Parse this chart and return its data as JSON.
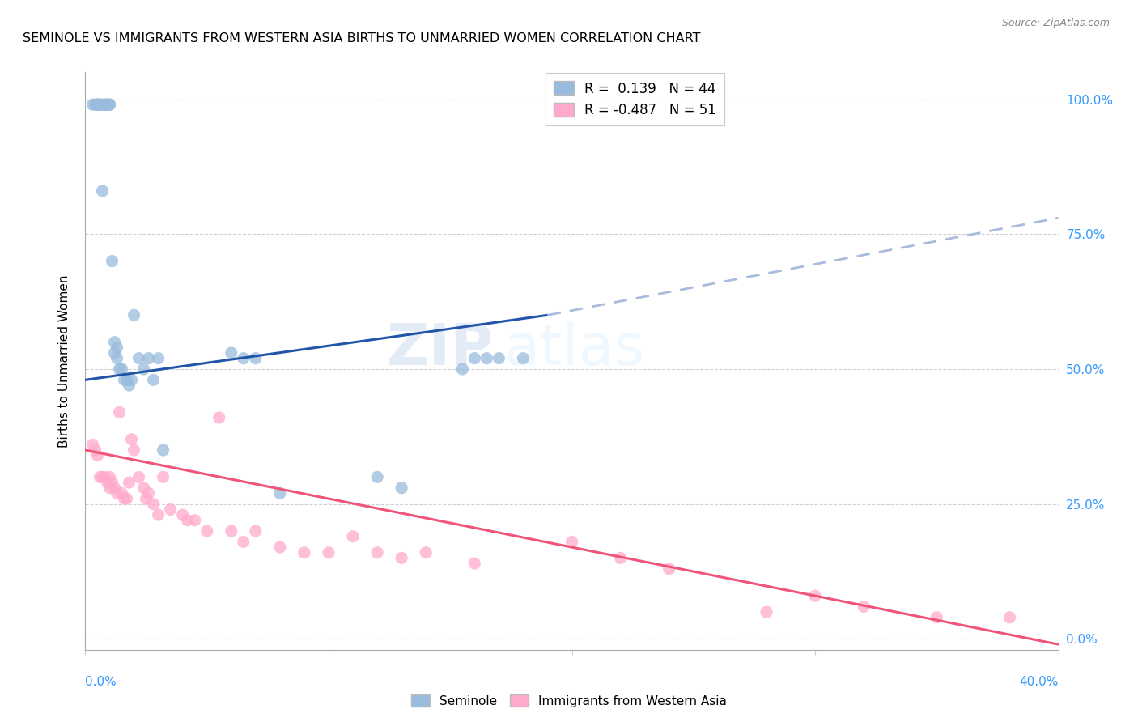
{
  "title": "SEMINOLE VS IMMIGRANTS FROM WESTERN ASIA BIRTHS TO UNMARRIED WOMEN CORRELATION CHART",
  "source": "Source: ZipAtlas.com",
  "ylabel": "Births to Unmarried Women",
  "right_yticks": [
    "100.0%",
    "75.0%",
    "50.0%",
    "25.0%",
    "0.0%"
  ],
  "right_ytick_vals": [
    1.0,
    0.75,
    0.5,
    0.25,
    0.0
  ],
  "xlim": [
    0.0,
    0.4
  ],
  "ylim": [
    -0.02,
    1.05
  ],
  "legend_blue_r": "0.139",
  "legend_blue_n": "44",
  "legend_pink_r": "-0.487",
  "legend_pink_n": "51",
  "blue_color": "#99BBDD",
  "pink_color": "#FFAACC",
  "blue_line_color": "#2255AA",
  "pink_line_color": "#EE5577",
  "dashed_line_color": "#AABBDD",
  "watermark_zip": "ZIP",
  "watermark_atlas": "atlas",
  "blue_scatter_x": [
    0.003,
    0.004,
    0.005,
    0.005,
    0.005,
    0.006,
    0.006,
    0.007,
    0.007,
    0.008,
    0.008,
    0.009,
    0.009,
    0.01,
    0.01,
    0.011,
    0.012,
    0.012,
    0.013,
    0.013,
    0.014,
    0.015,
    0.016,
    0.017,
    0.018,
    0.019,
    0.02,
    0.022,
    0.024,
    0.026,
    0.028,
    0.03,
    0.032,
    0.06,
    0.065,
    0.07,
    0.08,
    0.12,
    0.13,
    0.155,
    0.16,
    0.165,
    0.17,
    0.18
  ],
  "blue_scatter_y": [
    0.99,
    0.99,
    0.99,
    0.99,
    0.99,
    0.99,
    0.99,
    0.99,
    0.83,
    0.99,
    0.99,
    0.99,
    0.99,
    0.99,
    0.99,
    0.7,
    0.55,
    0.53,
    0.52,
    0.54,
    0.5,
    0.5,
    0.48,
    0.48,
    0.47,
    0.48,
    0.6,
    0.52,
    0.5,
    0.52,
    0.48,
    0.52,
    0.35,
    0.53,
    0.52,
    0.52,
    0.27,
    0.3,
    0.28,
    0.5,
    0.52,
    0.52,
    0.52,
    0.52
  ],
  "pink_scatter_x": [
    0.003,
    0.004,
    0.005,
    0.006,
    0.007,
    0.008,
    0.009,
    0.01,
    0.01,
    0.011,
    0.012,
    0.013,
    0.014,
    0.015,
    0.016,
    0.017,
    0.018,
    0.019,
    0.02,
    0.022,
    0.024,
    0.025,
    0.026,
    0.028,
    0.03,
    0.032,
    0.035,
    0.04,
    0.042,
    0.045,
    0.05,
    0.055,
    0.06,
    0.065,
    0.07,
    0.08,
    0.09,
    0.1,
    0.11,
    0.12,
    0.13,
    0.14,
    0.16,
    0.2,
    0.22,
    0.24,
    0.28,
    0.3,
    0.32,
    0.35,
    0.38
  ],
  "pink_scatter_y": [
    0.36,
    0.35,
    0.34,
    0.3,
    0.3,
    0.3,
    0.29,
    0.28,
    0.3,
    0.29,
    0.28,
    0.27,
    0.42,
    0.27,
    0.26,
    0.26,
    0.29,
    0.37,
    0.35,
    0.3,
    0.28,
    0.26,
    0.27,
    0.25,
    0.23,
    0.3,
    0.24,
    0.23,
    0.22,
    0.22,
    0.2,
    0.41,
    0.2,
    0.18,
    0.2,
    0.17,
    0.16,
    0.16,
    0.19,
    0.16,
    0.15,
    0.16,
    0.14,
    0.18,
    0.15,
    0.13,
    0.05,
    0.08,
    0.06,
    0.04,
    0.04
  ],
  "blue_line_x0": 0.0,
  "blue_line_x1": 0.19,
  "blue_line_y0": 0.48,
  "blue_line_y1": 0.6,
  "dashed_line_x0": 0.19,
  "dashed_line_x1": 0.4,
  "dashed_line_y0": 0.6,
  "dashed_line_y1": 0.78,
  "pink_line_x0": 0.0,
  "pink_line_x1": 0.4,
  "pink_line_y0": 0.35,
  "pink_line_y1": -0.01
}
